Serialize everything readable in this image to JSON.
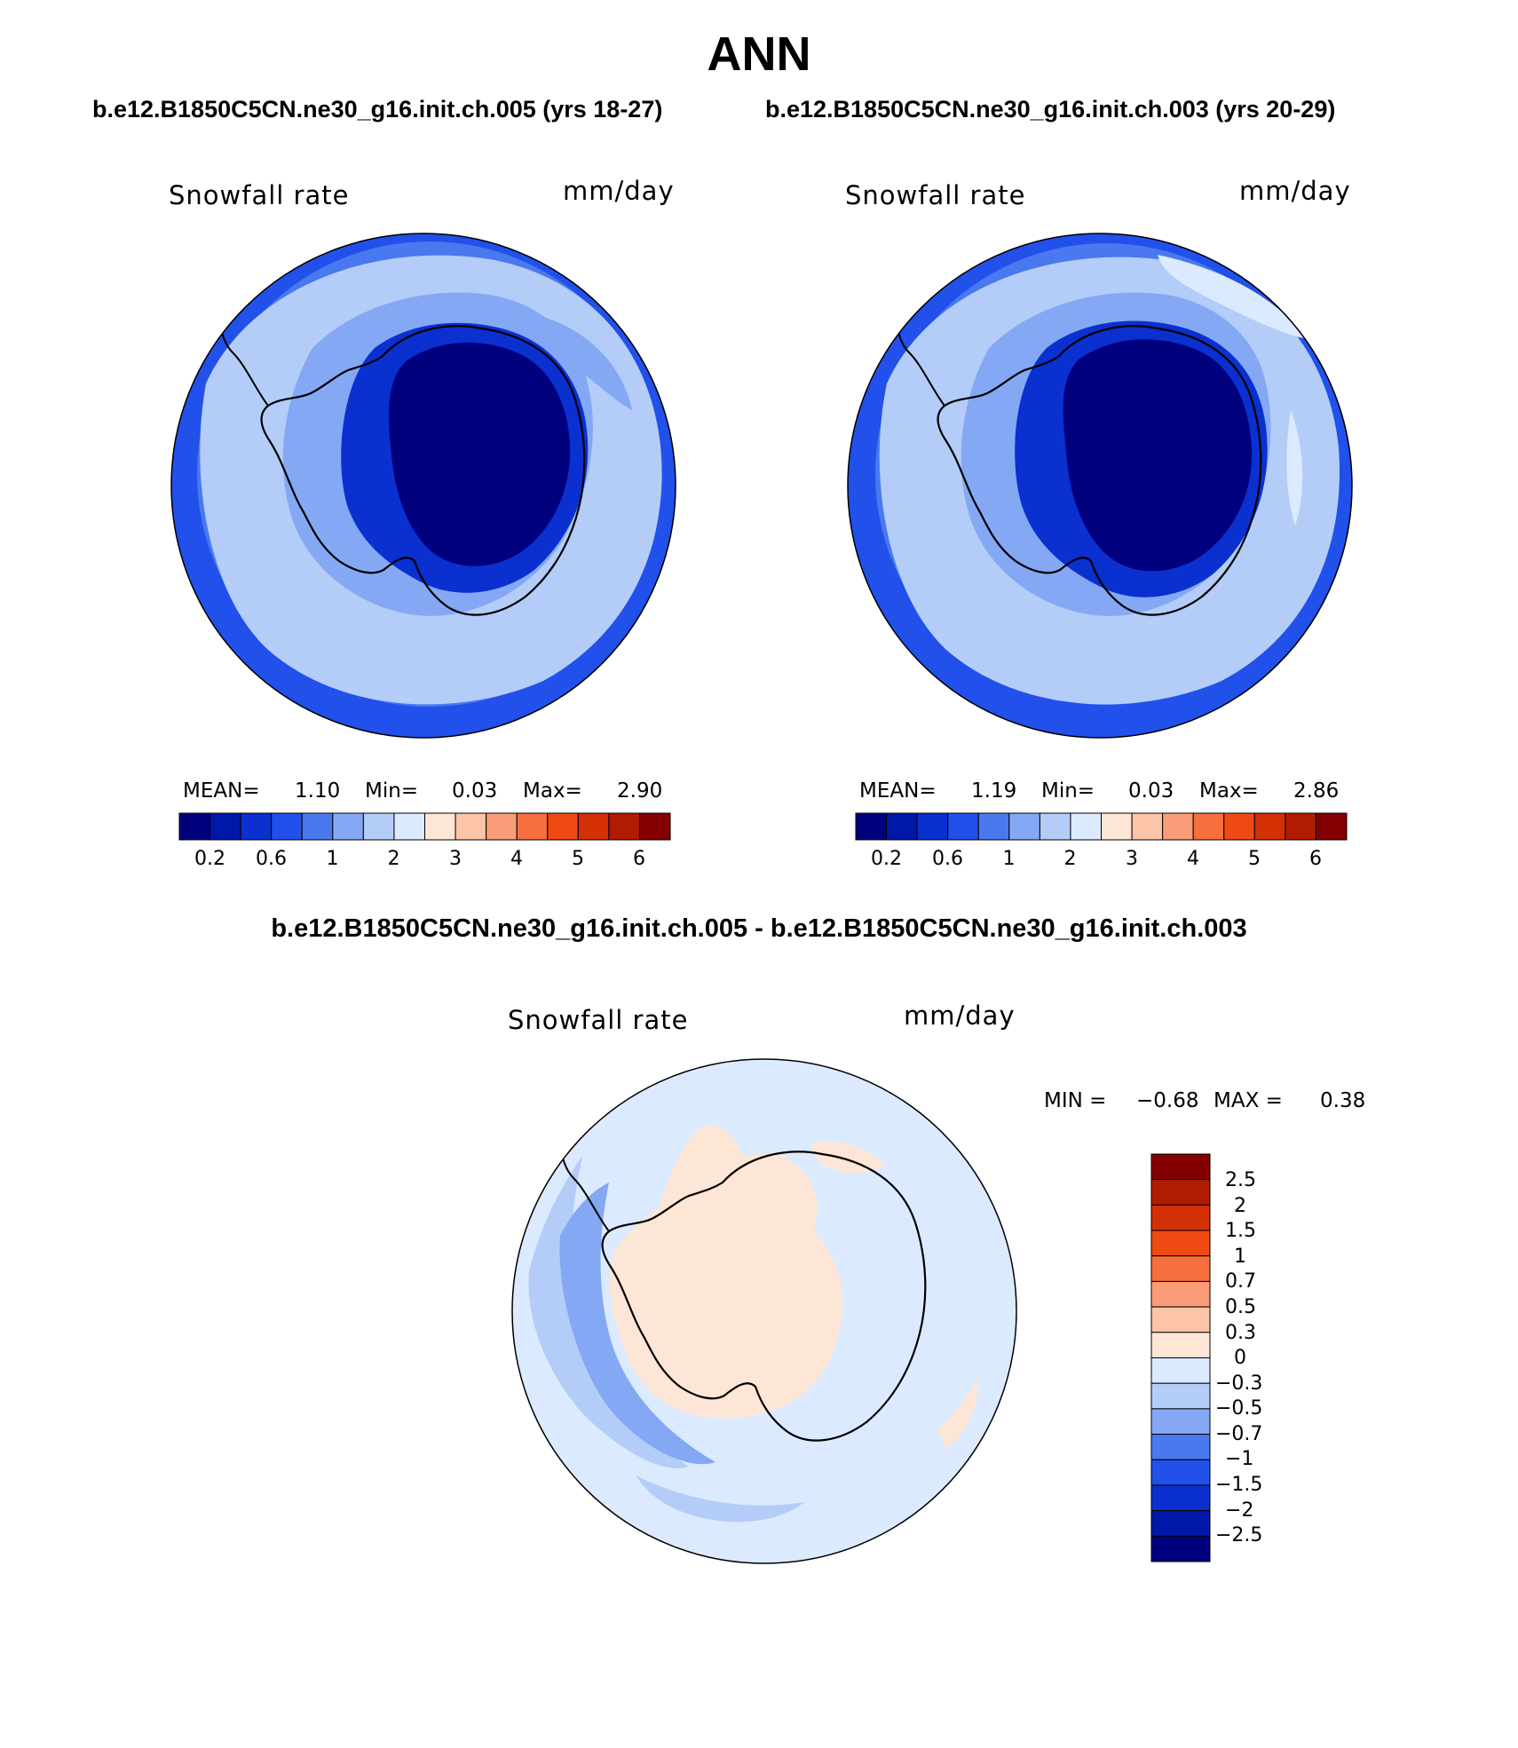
{
  "title": "ANN",
  "subtitles": {
    "case1": "b.e12.B1850C5CN.ne30_g16.init.ch.005 (yrs 18-27)",
    "case2": "b.e12.B1850C5CN.ne30_g16.init.ch.003 (yrs 20-29)"
  },
  "diff_title": "b.e12.B1850C5CN.ne30_g16.init.ch.005 - b.e12.B1850C5CN.ne30_g16.init.ch.003",
  "panels": [
    {
      "variable": "Snowfall rate",
      "units": "mm/day",
      "stats": {
        "mean_label": "MEAN=",
        "mean": "1.10",
        "min_label": "Min=",
        "min": "0.03",
        "max_label": "Max=",
        "max": "2.90"
      }
    },
    {
      "variable": "Snowfall rate",
      "units": "mm/day",
      "stats": {
        "mean_label": "MEAN=",
        "mean": "1.19",
        "min_label": "Min=",
        "min": "0.03",
        "max_label": "Max=",
        "max": "2.86"
      }
    }
  ],
  "diff_panel": {
    "variable": "Snowfall rate",
    "units": "mm/day",
    "stats": {
      "min_label": "MIN =",
      "min": "−0.68",
      "max_label": "MAX =",
      "max": "0.38"
    }
  },
  "colorbar_main": {
    "ticks": [
      "0.2",
      "0.6",
      "1",
      "2",
      "3",
      "4",
      "5",
      "6"
    ],
    "colors": [
      "#00007f",
      "#0018a8",
      "#0a30d0",
      "#2150ea",
      "#4a78ee",
      "#84a8f4",
      "#b4ccf8",
      "#dceaff",
      "#fde6d6",
      "#fcc4a8",
      "#fa9c78",
      "#f6703e",
      "#f04a14",
      "#d43005",
      "#b01c02",
      "#840000"
    ]
  },
  "colorbar_diff": {
    "ticks": [
      "2.5",
      "2",
      "1.5",
      "1",
      "0.7",
      "0.5",
      "0.3",
      "0",
      "−0.3",
      "−0.5",
      "−0.7",
      "−1",
      "−1.5",
      "−2",
      "−2.5"
    ],
    "colors": [
      "#840000",
      "#b01c02",
      "#d43005",
      "#f04a14",
      "#f6703e",
      "#fa9c78",
      "#fcc4a8",
      "#fde6d6",
      "#dceaff",
      "#b4ccf8",
      "#84a8f4",
      "#4a78ee",
      "#2150ea",
      "#0a30d0",
      "#0018a8",
      "#00007f"
    ]
  },
  "field_colors": {
    "ocean_outer": "#2150ea",
    "ocean_mid": "#4a78ee",
    "ocean_light": "#84a8f4",
    "ocean_pale": "#b4ccf8",
    "coast": "#0a30d0",
    "interior": "#00007f",
    "diff_bg": "#dceaff",
    "diff_pos": "#fde6d6",
    "diff_neg": "#b4ccf8"
  }
}
